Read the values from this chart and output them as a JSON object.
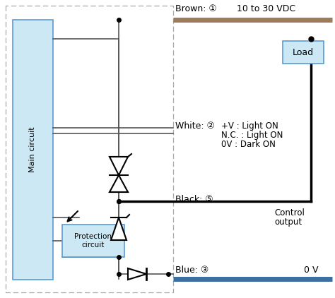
{
  "bg_color": "#ffffff",
  "light_blue": "#cce8f4",
  "brown_color": "#9e7b5a",
  "blue_color": "#3a6fa0",
  "dark_color": "#1a1a1a",
  "wire_color": "#555555",
  "brown_label": "Brown: ①",
  "brown_voltage": "10 to 30 VDC",
  "white_label": "White: ②",
  "white_note1": "+V : Light ON",
  "white_note2": "N.C. : Light ON",
  "white_note3": "0V : Dark ON",
  "black_label": "Black: ⑤",
  "black_note1": "Control",
  "black_note2": "output",
  "blue_label": "Blue: ③",
  "blue_voltage": "0 V",
  "load_label": "Load",
  "protection_label": "Protection\ncircuit",
  "main_circuit_label": "Main circuit",
  "figw": 4.74,
  "figh": 4.22,
  "dpi": 100
}
